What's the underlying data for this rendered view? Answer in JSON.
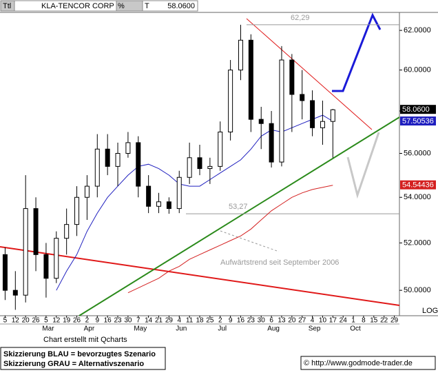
{
  "header": {
    "field1": "Ttl",
    "symbol": "KLA-TENCOR CORP",
    "field2": "%",
    "field3": "T",
    "last": "58.0600"
  },
  "chart_data": {
    "type": "candlestick",
    "log": true,
    "ylim": [
      48.96,
      62.93
    ],
    "yticks": [
      {
        "value": 50,
        "label": "50.0000"
      },
      {
        "value": 52,
        "label": "52.0000"
      },
      {
        "value": 54,
        "label": "54.0000"
      },
      {
        "value": 56,
        "label": "56.0000"
      },
      {
        "value": 58,
        "label": "58.0000"
      },
      {
        "value": 60,
        "label": "60.0000"
      },
      {
        "value": 62,
        "label": "62.0000"
      }
    ],
    "scale_label": "LOG",
    "categories": [
      "5",
      "12",
      "20",
      "26",
      "5",
      "12",
      "19",
      "26",
      "2",
      "9",
      "16",
      "23",
      "30",
      "7",
      "14",
      "21",
      "29",
      "4",
      "11",
      "18",
      "25",
      "2",
      "9",
      "16",
      "23",
      "30",
      "6",
      "13",
      "20",
      "27",
      "4",
      "10",
      "17",
      "24",
      "1",
      "8",
      "15",
      "22",
      "29"
    ],
    "months": [
      null,
      null,
      null,
      null,
      "Mar",
      null,
      null,
      null,
      "Apr",
      null,
      null,
      null,
      null,
      "May",
      null,
      null,
      null,
      "Jun",
      null,
      null,
      null,
      "Jul",
      null,
      null,
      null,
      null,
      "Aug",
      null,
      null,
      null,
      "Sep",
      null,
      null,
      null,
      "Oct",
      null,
      null,
      null,
      null
    ],
    "color": "#000000",
    "open": [
      51.5,
      50,
      49.8,
      53.5,
      51.5,
      50.5,
      52.2,
      52.8,
      54,
      54.5,
      56.2,
      55.4,
      56,
      56.5,
      54.5,
      53.6,
      53.8,
      53.5,
      54.9,
      55.8,
      55.3,
      55.4,
      57,
      60,
      61.5,
      57.6,
      57.4,
      55.6,
      60.5,
      58.8,
      58.5,
      57.2,
      57.5,
      null,
      null,
      null,
      null,
      null,
      null
    ],
    "high": [
      51.8,
      50.8,
      55,
      54,
      52,
      52.5,
      53.5,
      54.5,
      55,
      56.9,
      56.9,
      56.5,
      57,
      56.8,
      55,
      54.2,
      54,
      55.2,
      56.5,
      56.4,
      55.8,
      57.5,
      60.5,
      62.29,
      61.8,
      58.2,
      58,
      61.2,
      60.8,
      60,
      59,
      58.5,
      58.1,
      null,
      null,
      null,
      null,
      null,
      null
    ],
    "low": [
      49.6,
      49.2,
      49.5,
      50.8,
      49.7,
      50.3,
      51.5,
      52.3,
      53,
      54,
      55,
      54.5,
      55.8,
      54,
      53.3,
      53.3,
      53.27,
      53.3,
      54.6,
      55,
      54.6,
      55.2,
      56.6,
      59.5,
      57,
      56.2,
      55.35,
      55.4,
      57,
      57.6,
      56.8,
      56.4,
      55.8,
      null,
      null,
      null,
      null,
      null,
      null
    ],
    "close": [
      50,
      49.8,
      53.5,
      51.5,
      50.5,
      52.2,
      52.8,
      54,
      54.5,
      56.2,
      55.4,
      56,
      56.5,
      54.5,
      53.6,
      53.8,
      53.5,
      54.9,
      55.8,
      55.3,
      55.4,
      57,
      60,
      61.5,
      57.6,
      57.4,
      55.6,
      60.5,
      58.8,
      58.5,
      57.2,
      57.5,
      58.06,
      null,
      null,
      null,
      null,
      null,
      null
    ],
    "close_label": "58.0600",
    "series": [
      {
        "color": "#1f1fbf",
        "values": [
          null,
          null,
          null,
          null,
          null,
          50.0,
          50.8,
          51.5,
          52.5,
          53.3,
          54.0,
          54.5,
          55.0,
          55.4,
          55.5,
          55.3,
          55.0,
          54.6,
          54.5,
          54.5,
          54.8,
          55.1,
          55.4,
          55.7,
          56.2,
          56.8,
          57.1,
          57.0,
          57.2,
          57.4,
          57.6,
          57.8,
          57.50536,
          null,
          null,
          null,
          null,
          null,
          null
        ],
        "last_label": "57.50536"
      },
      {
        "color": "#d42020",
        "values": [
          null,
          null,
          null,
          null,
          null,
          null,
          null,
          null,
          null,
          null,
          null,
          null,
          49.9,
          50.1,
          50.3,
          50.5,
          50.8,
          51.0,
          51.3,
          51.5,
          51.7,
          51.9,
          52.1,
          52.3,
          52.6,
          53.0,
          53.4,
          53.7,
          54.0,
          54.2,
          54.35,
          54.45,
          54.54436,
          null,
          null,
          null,
          null,
          null,
          null
        ],
        "last_label": "54.54436"
      }
    ],
    "levels": [
      {
        "value": 62.29,
        "label": "62,29"
      },
      {
        "value": 53.27,
        "label": "53,27"
      }
    ],
    "annotation": "Aufwärtstrend seit September 2006",
    "credit": "Chart erstellt mit Qcharts"
  },
  "legend": [
    "Skizzierung BLAU = bevorzugtes Szenario",
    "Skizzierung GRAU = Alternativszenario"
  ],
  "source": "© http://www.godmode-trader.de"
}
